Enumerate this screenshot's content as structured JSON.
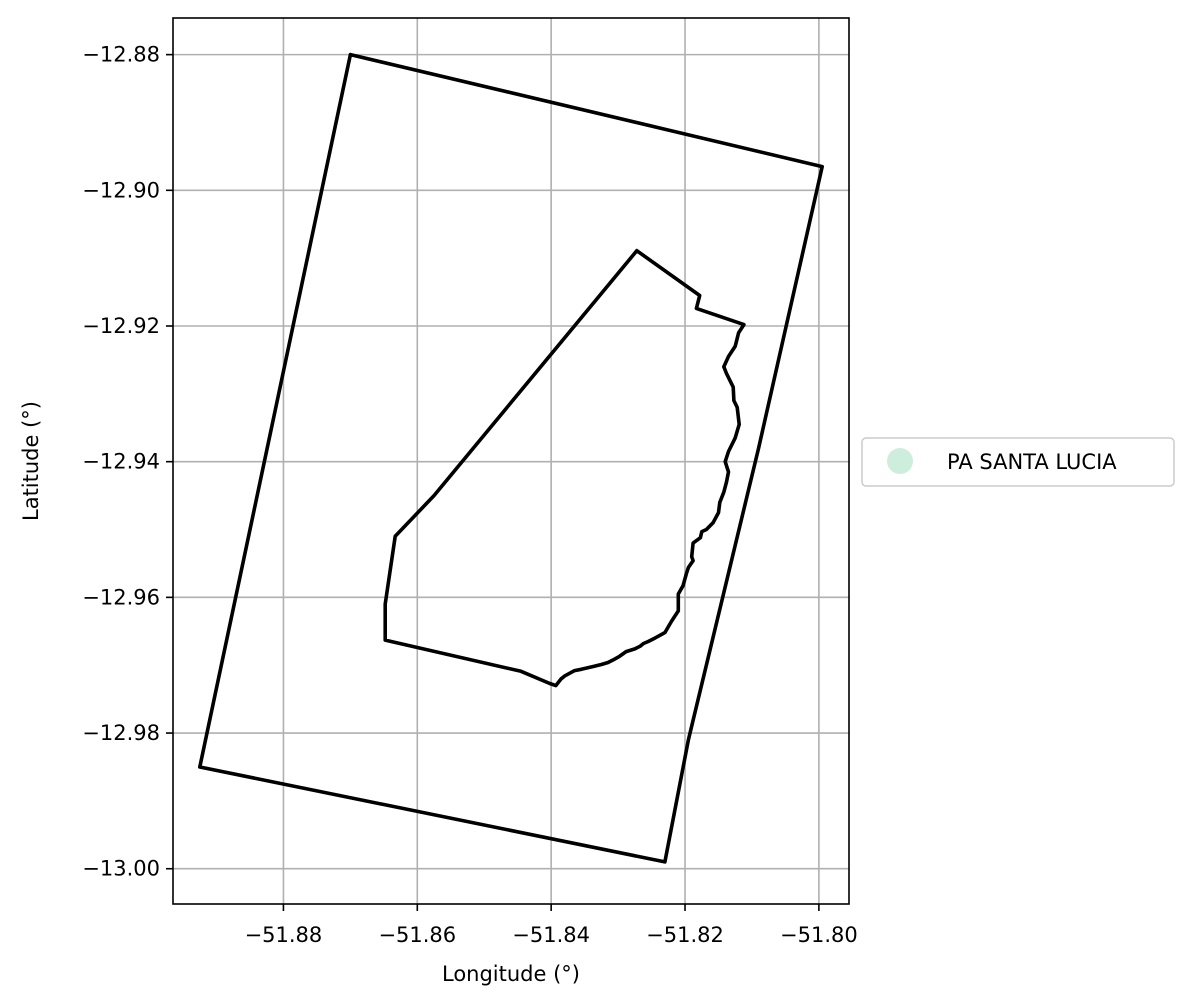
{
  "chart_data": {
    "type": "map",
    "xlabel": "Longitude (°)",
    "ylabel": "Latitude (°)",
    "xlim": [
      -51.8965,
      -51.7955
    ],
    "ylim": [
      -13.0052,
      -12.8746
    ],
    "grid": true,
    "xticks": [
      -51.88,
      -51.86,
      -51.84,
      -51.82,
      -51.8
    ],
    "xtick_labels": [
      "−51.88",
      "−51.86",
      "−51.84",
      "−51.82",
      "−51.80"
    ],
    "yticks": [
      -12.88,
      -12.9,
      -12.92,
      -12.94,
      -12.96,
      -12.98,
      -13.0
    ],
    "ytick_labels": [
      "−12.88",
      "−12.90",
      "−12.92",
      "−12.94",
      "−12.96",
      "−12.98",
      "−13.00"
    ],
    "legend": {
      "placement": "center-right-outside",
      "entries": [
        {
          "name": "PA SANTA LUCIA",
          "color": "#cdeedd"
        }
      ]
    },
    "outline_color": "#000000",
    "grid_color": "#b0b0b0",
    "shapes": [
      {
        "kind": "outer-rectangle",
        "points": [
          [
            -51.87,
            -12.88
          ],
          [
            -51.7995,
            -12.8965
          ],
          [
            -51.809,
            -12.938
          ],
          [
            -51.8195,
            -12.981
          ],
          [
            -51.823,
            -12.999
          ],
          [
            -51.8925,
            -12.985
          ],
          [
            -51.87,
            -12.88
          ]
        ]
      },
      {
        "kind": "inner-polygon",
        "points": [
          [
            -51.8272,
            -12.9089
          ],
          [
            -51.8178,
            -12.9155
          ],
          [
            -51.8183,
            -12.9174
          ],
          [
            -51.8112,
            -12.9198
          ],
          [
            -51.812,
            -12.921
          ],
          [
            -51.8125,
            -12.923
          ],
          [
            -51.8135,
            -12.9245
          ],
          [
            -51.8142,
            -12.926
          ],
          [
            -51.8138,
            -12.927
          ],
          [
            -51.8128,
            -12.929
          ],
          [
            -51.8127,
            -12.931
          ],
          [
            -51.8122,
            -12.932
          ],
          [
            -51.8119,
            -12.9345
          ],
          [
            -51.8125,
            -12.9365
          ],
          [
            -51.8135,
            -12.9385
          ],
          [
            -51.814,
            -12.94
          ],
          [
            -51.8135,
            -12.9415
          ],
          [
            -51.8138,
            -12.943
          ],
          [
            -51.8142,
            -12.9445
          ],
          [
            -51.8148,
            -12.946
          ],
          [
            -51.815,
            -12.9475
          ],
          [
            -51.8158,
            -12.949
          ],
          [
            -51.8168,
            -12.95
          ],
          [
            -51.8175,
            -12.9503
          ],
          [
            -51.8177,
            -12.9512
          ],
          [
            -51.8188,
            -12.952
          ],
          [
            -51.819,
            -12.954
          ],
          [
            -51.8188,
            -12.9546
          ],
          [
            -51.8195,
            -12.9556
          ],
          [
            -51.8198,
            -12.9565
          ],
          [
            -51.8203,
            -12.9583
          ],
          [
            -51.821,
            -12.9595
          ],
          [
            -51.821,
            -12.962
          ],
          [
            -51.822,
            -12.9635
          ],
          [
            -51.823,
            -12.9652
          ],
          [
            -51.8245,
            -12.966
          ],
          [
            -51.8255,
            -12.9665
          ],
          [
            -51.8262,
            -12.9668
          ],
          [
            -51.8267,
            -12.9672
          ],
          [
            -51.8275,
            -12.9676
          ],
          [
            -51.8288,
            -12.968
          ],
          [
            -51.8298,
            -12.9687
          ],
          [
            -51.8305,
            -12.9691
          ],
          [
            -51.8315,
            -12.9696
          ],
          [
            -51.8325,
            -12.9699
          ],
          [
            -51.8338,
            -12.9702
          ],
          [
            -51.8355,
            -12.9706
          ],
          [
            -51.8365,
            -12.9708
          ],
          [
            -51.838,
            -12.9716
          ],
          [
            -51.8385,
            -12.972
          ],
          [
            -51.8393,
            -12.973
          ],
          [
            -51.8402,
            -12.9727
          ],
          [
            -51.8445,
            -12.9709
          ],
          [
            -51.8648,
            -12.9663
          ],
          [
            -51.8648,
            -12.961
          ],
          [
            -51.8633,
            -12.951
          ],
          [
            -51.8575,
            -12.945
          ],
          [
            -51.8272,
            -12.9089
          ]
        ]
      }
    ]
  }
}
